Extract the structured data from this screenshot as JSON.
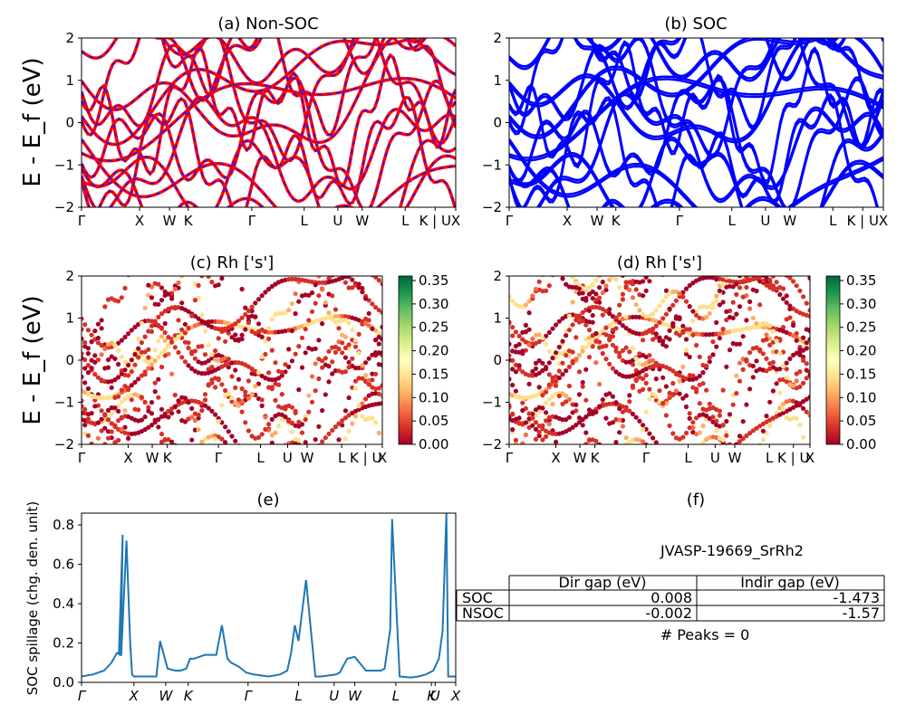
{
  "chart_data": [
    {
      "type": "line",
      "title": "(a) Non-SOC",
      "ylabel": "E - E_f (eV)",
      "ylim": [
        -2,
        2
      ],
      "yticks": [
        "2",
        "1",
        "0",
        "−1",
        "−2"
      ],
      "kpath": [
        "Γ",
        "X",
        "W",
        "K",
        "Γ",
        "L",
        "U",
        "W",
        "L",
        "K | U",
        "X"
      ],
      "kpos": [
        0,
        0.155,
        0.235,
        0.285,
        0.455,
        0.595,
        0.685,
        0.75,
        0.865,
        0.945,
        1.0
      ],
      "series": [
        {
          "color": "#ff0000",
          "style": "solid",
          "values": []
        },
        {
          "color": "#1a1aff",
          "style": "dashed",
          "values": []
        }
      ],
      "grid": false
    },
    {
      "type": "line",
      "title": "(b) SOC",
      "ylim": [
        -2,
        2
      ],
      "yticks": [
        "2",
        "1",
        "0",
        "−1",
        "−2"
      ],
      "kpath": [
        "Γ",
        "X",
        "W",
        "K",
        "Γ",
        "L",
        "U",
        "W",
        "L",
        "K | U",
        "X"
      ],
      "kpos": [
        0,
        0.155,
        0.235,
        0.285,
        0.455,
        0.595,
        0.685,
        0.75,
        0.865,
        0.945,
        1.0
      ],
      "series": [
        {
          "color": "#0000ff",
          "values": []
        }
      ],
      "grid": false
    },
    {
      "type": "scatter",
      "title": "(c)  Rh ['s']",
      "ylabel": "E - E_f (eV)",
      "ylim": [
        -2,
        2
      ],
      "yticks": [
        "2",
        "1",
        "0",
        "−1",
        "−2"
      ],
      "kpath": [
        "Γ",
        "X",
        "W",
        "K",
        "Γ",
        "L",
        "U",
        "W",
        "L",
        "K | U",
        "X"
      ],
      "kpos": [
        0,
        0.155,
        0.235,
        0.285,
        0.455,
        0.595,
        0.685,
        0.75,
        0.865,
        0.945,
        1.0
      ],
      "colorbar": {
        "min": 0.0,
        "max": 0.35,
        "ticks": [
          "0.35",
          "0.30",
          "0.25",
          "0.20",
          "0.15",
          "0.10",
          "0.05",
          "0.00"
        ],
        "colormap": "RdYlGn"
      }
    },
    {
      "type": "scatter",
      "title": "(d) Rh ['s']",
      "ylim": [
        -2,
        2
      ],
      "yticks": [
        "2",
        "1",
        "0",
        "−1",
        "−2"
      ],
      "kpath": [
        "Γ",
        "X",
        "W",
        "K",
        "Γ",
        "L",
        "U",
        "W",
        "L",
        "K | U",
        "X"
      ],
      "kpos": [
        0,
        0.155,
        0.235,
        0.285,
        0.455,
        0.595,
        0.685,
        0.75,
        0.865,
        0.945,
        1.0
      ],
      "colorbar": {
        "min": 0.0,
        "max": 0.35,
        "ticks": [
          "0.35",
          "0.30",
          "0.25",
          "0.20",
          "0.15",
          "0.10",
          "0.05",
          "0.00"
        ],
        "colormap": "RdYlGn"
      }
    },
    {
      "type": "line",
      "title": "(e)",
      "ylabel": "SOC spillage (chg. den. unit)",
      "ylim": [
        0,
        0.86
      ],
      "yticks": [
        0.0,
        0.2,
        0.4,
        0.6,
        0.8
      ],
      "ytick_labels": [
        "0.0",
        "0.2",
        "0.4",
        "0.6",
        "0.8"
      ],
      "xticks": [
        "Γ",
        "X",
        "W",
        "K",
        "Γ",
        "L",
        "U",
        "W",
        "L",
        "K",
        "U",
        "X"
      ],
      "xtick_pos": [
        0,
        0.14,
        0.225,
        0.285,
        0.445,
        0.58,
        0.675,
        0.73,
        0.84,
        0.935,
        0.945,
        1.0
      ],
      "series": [
        {
          "color": "#1f77b4",
          "x": [
            0,
            0.03,
            0.06,
            0.08,
            0.095,
            0.105,
            0.11,
            0.1,
            0.102,
            0.106,
            0.12,
            0.13,
            0.135,
            0.14,
            0.155,
            0.18,
            0.2,
            0.21,
            0.23,
            0.25,
            0.265,
            0.28,
            0.29,
            0.3,
            0.33,
            0.36,
            0.375,
            0.39,
            0.4,
            0.42,
            0.44,
            0.46,
            0.5,
            0.53,
            0.55,
            0.56,
            0.57,
            0.58,
            0.6,
            0.625,
            0.64,
            0.66,
            0.68,
            0.69,
            0.71,
            0.73,
            0.76,
            0.78,
            0.8,
            0.81,
            0.825,
            0.83,
            0.85,
            0.88,
            0.9,
            0.92,
            0.94,
            0.955,
            0.965,
            0.975,
            0.98,
            0.99,
            1.0
          ],
          "y": [
            0.03,
            0.04,
            0.06,
            0.1,
            0.15,
            0.14,
            0.75,
            0.15,
            0.14,
            0.14,
            0.72,
            0.2,
            0.04,
            0.03,
            0.03,
            0.03,
            0.03,
            0.21,
            0.07,
            0.06,
            0.06,
            0.07,
            0.12,
            0.12,
            0.14,
            0.14,
            0.29,
            0.12,
            0.1,
            0.08,
            0.05,
            0.04,
            0.03,
            0.04,
            0.06,
            0.15,
            0.29,
            0.21,
            0.52,
            0.03,
            0.03,
            0.035,
            0.04,
            0.05,
            0.12,
            0.13,
            0.06,
            0.06,
            0.06,
            0.07,
            0.27,
            0.83,
            0.03,
            0.025,
            0.03,
            0.04,
            0.06,
            0.12,
            0.26,
            0.86,
            0.03,
            0.03,
            0.03
          ]
        }
      ],
      "grid": false
    }
  ],
  "panel_f": {
    "title": "(f)",
    "material": "JVASP-19669_SrRh2",
    "table": {
      "headers": [
        "",
        "Dir gap (eV)",
        "Indir gap (eV)"
      ],
      "rows": [
        [
          "SOC",
          "0.008",
          "-1.473"
        ],
        [
          "NSOC",
          "-0.002",
          "-1.57"
        ]
      ]
    },
    "peaks": "# Peaks = 0"
  }
}
